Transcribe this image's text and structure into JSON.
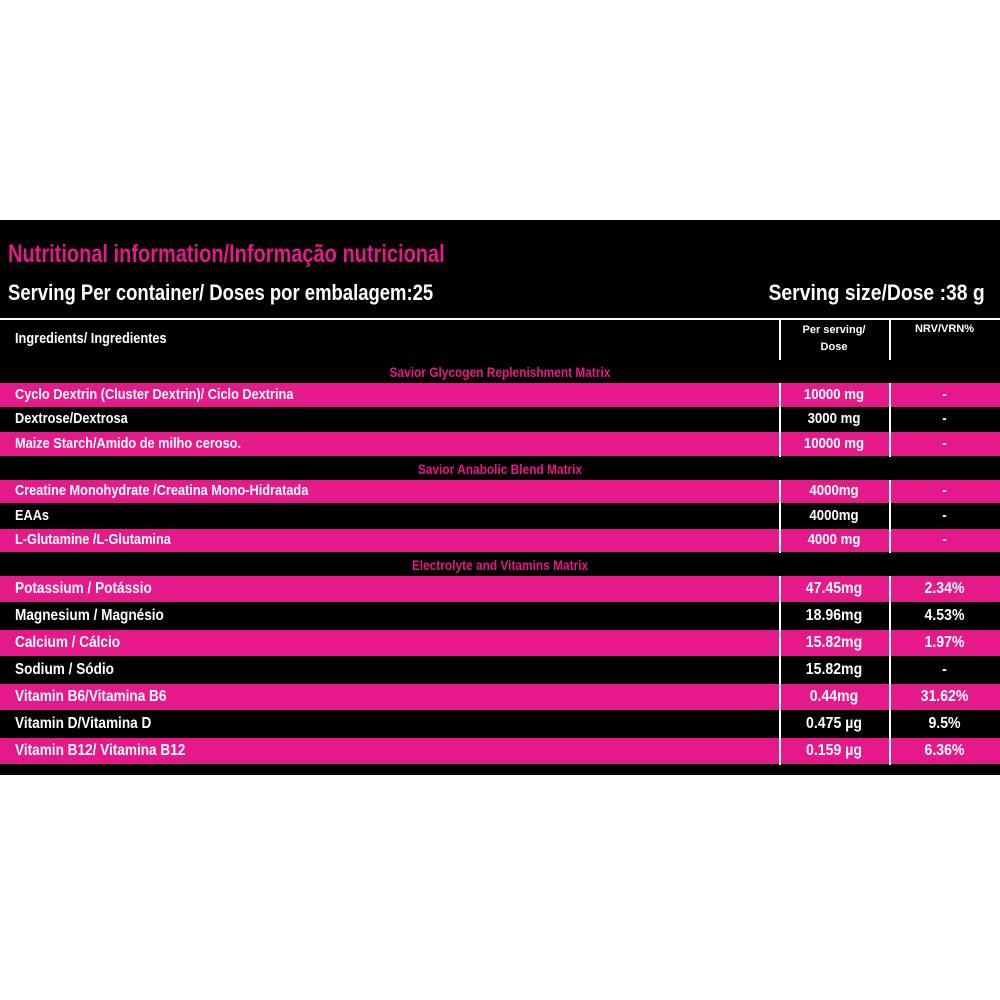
{
  "header": {
    "title": "Nutritional information/Informação nutricional",
    "servings": "Serving Per container/ Doses por embalagem:25",
    "serving_size": "Serving size/Dose :38 g"
  },
  "table": {
    "columns": [
      "Ingredients/ Ingredientes",
      [
        "Per serving/",
        "Dose"
      ],
      "NRV/VRN%"
    ],
    "sections": [
      {
        "title": "Savior Glycogen Replenishment Matrix",
        "rows": [
          [
            "Cyclo Dextrin (Cluster Dextrin)/ Ciclo Dextrina",
            "10000 mg",
            "-"
          ],
          [
            "Dextrose/Dextrosa",
            "3000 mg",
            "-"
          ],
          [
            "Maize Starch/Amido de milho ceroso.",
            "10000 mg",
            "-"
          ]
        ]
      },
      {
        "title": "Savior Anabolic Blend Matrix",
        "rows": [
          [
            "Creatine Monohydrate /Creatina Mono-Hidratada",
            "4000mg",
            "-"
          ],
          [
            "EAAs",
            "4000mg",
            "-"
          ],
          [
            "L-Glutamine /L-Glutamina",
            "4000 mg",
            "-"
          ]
        ]
      },
      {
        "title": "Electrolyte and Vitamins Matrix",
        "rows": [
          [
            "Potassium / Potássio",
            "47.45mg",
            "2.34%"
          ],
          [
            "Magnesium / Magnésio",
            "18.96mg",
            "4.53%"
          ],
          [
            "Calcium / Cálcio",
            "15.82mg",
            "1.97%"
          ],
          [
            "Sodium / Sódio",
            "15.82mg",
            "-"
          ],
          [
            "Vitamin B6/Vitamina B6",
            "0.44mg",
            "31.62%"
          ],
          [
            "Vitamin D/Vitamina D",
            "0.475 µg",
            "9.5%"
          ],
          [
            "Vitamin B12/ Vitamina B12",
            "0.159 µg",
            "6.36%"
          ]
        ]
      }
    ]
  }
}
